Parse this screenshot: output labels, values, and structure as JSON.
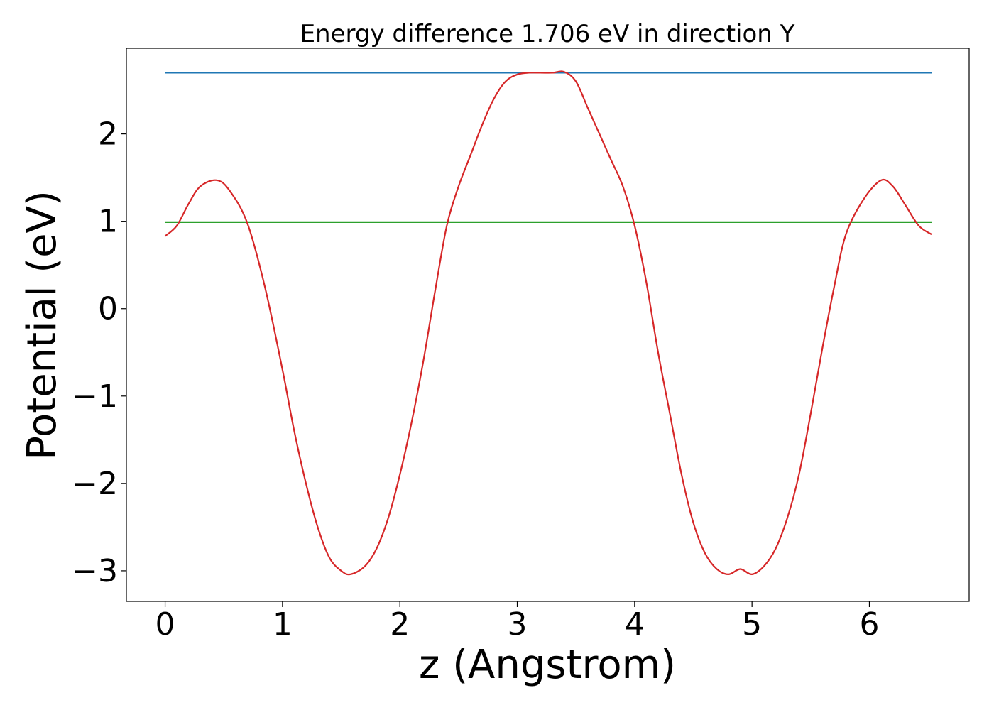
{
  "chart_data": {
    "type": "line",
    "title": "Energy difference 1.706 eV in direction Y",
    "xlabel": "z (Angstrom)",
    "ylabel": "Potential (eV)",
    "xlim": [
      -0.33,
      6.85
    ],
    "ylim": [
      -3.35,
      2.98
    ],
    "xticks": [
      0,
      1,
      2,
      3,
      4,
      5,
      6
    ],
    "xtick_labels": [
      "0",
      "1",
      "2",
      "3",
      "4",
      "5",
      "6"
    ],
    "yticks": [
      -3,
      -2,
      -1,
      0,
      1,
      2
    ],
    "ytick_labels": [
      "−3",
      "−2",
      "−1",
      "0",
      "1",
      "2"
    ],
    "grid": false,
    "series": [
      {
        "color": "#1f77b4",
        "x": [
          0,
          6.53
        ],
        "y": [
          2.7,
          2.7
        ]
      },
      {
        "color": "#2ca02c",
        "x": [
          0,
          6.53
        ],
        "y": [
          0.99,
          0.99
        ]
      },
      {
        "color": "#d62728",
        "x": [
          0,
          0.1,
          0.2,
          0.3,
          0.44,
          0.55,
          0.7,
          0.85,
          1.0,
          1.1,
          1.2,
          1.3,
          1.4,
          1.5,
          1.58,
          1.7,
          1.8,
          1.9,
          2.0,
          2.1,
          2.2,
          2.3,
          2.4,
          2.5,
          2.6,
          2.7,
          2.8,
          2.9,
          3.0,
          3.1,
          3.2,
          3.3,
          3.4,
          3.5,
          3.6,
          3.7,
          3.8,
          3.9,
          4.0,
          4.1,
          4.2,
          4.3,
          4.4,
          4.5,
          4.6,
          4.7,
          4.8,
          4.9,
          5.0,
          5.1,
          5.2,
          5.3,
          5.4,
          5.5,
          5.6,
          5.7,
          5.8,
          5.95,
          6.1,
          6.2,
          6.3,
          6.42,
          6.53
        ],
        "y": [
          0.83,
          0.95,
          1.2,
          1.4,
          1.47,
          1.35,
          0.98,
          0.25,
          -0.7,
          -1.4,
          -2.0,
          -2.5,
          -2.85,
          -3.0,
          -3.04,
          -2.95,
          -2.75,
          -2.4,
          -1.9,
          -1.3,
          -0.6,
          0.2,
          0.95,
          1.4,
          1.75,
          2.1,
          2.4,
          2.6,
          2.68,
          2.7,
          2.7,
          2.7,
          2.71,
          2.6,
          2.3,
          2.0,
          1.7,
          1.4,
          0.95,
          0.3,
          -0.5,
          -1.2,
          -1.9,
          -2.45,
          -2.8,
          -2.98,
          -3.04,
          -2.98,
          -3.04,
          -2.95,
          -2.75,
          -2.4,
          -1.9,
          -1.2,
          -0.45,
          0.25,
          0.85,
          1.25,
          1.47,
          1.4,
          1.2,
          0.95,
          0.85
        ]
      }
    ]
  }
}
